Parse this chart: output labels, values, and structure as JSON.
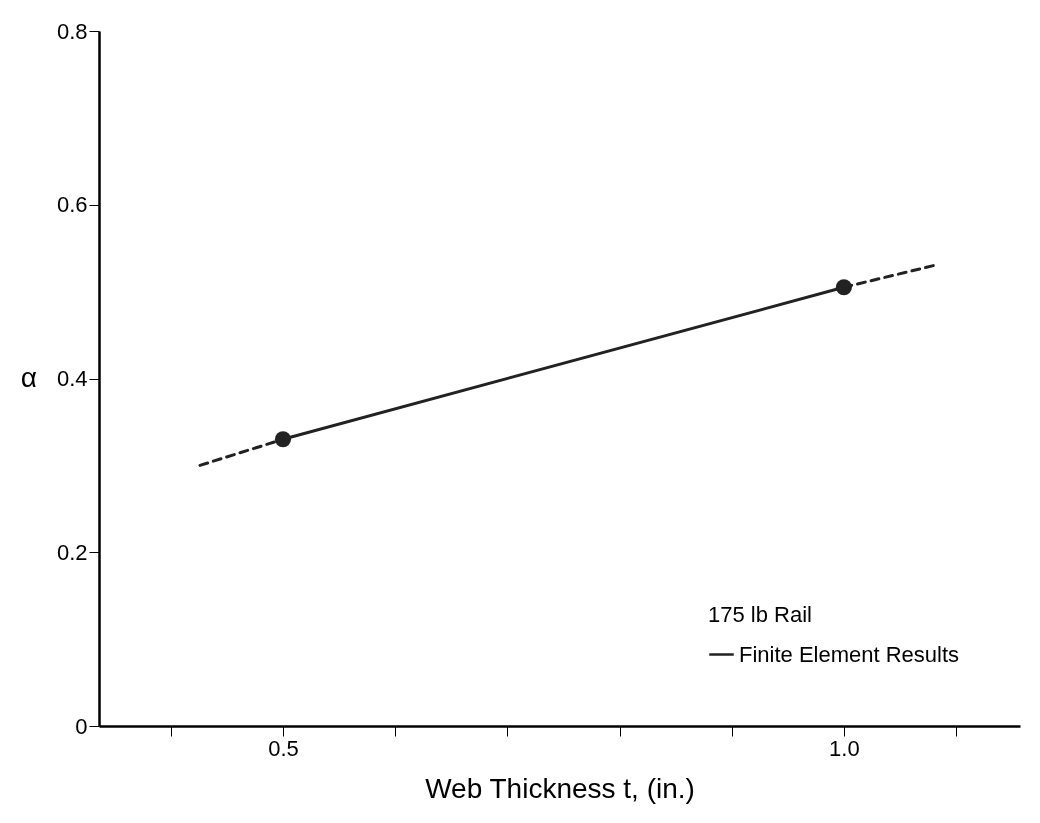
{
  "chart_data": {
    "type": "line",
    "xlabel": "Web Thickness  t, (in.)",
    "ylabel": "α",
    "legend_title": "175 lb Rail",
    "legend": "bottom right",
    "grid": false,
    "xlim": [
      0.336,
      1.157
    ],
    "xticks": [
      {
        "value": 0.4,
        "label": null
      },
      0.5,
      {
        "value": 0.6,
        "label": null
      },
      {
        "value": 0.7,
        "label": null
      },
      {
        "value": 0.8,
        "label": null
      },
      {
        "value": 0.9,
        "label": null
      },
      {
        "value": 1.0,
        "label": "1.0"
      },
      {
        "value": 1.1,
        "label": null
      }
    ],
    "ylim": [
      0,
      0.8
    ],
    "yticks": [
      0,
      0.2,
      0.4,
      0.6,
      0.8
    ],
    "series": [
      {
        "name": "Finite Element Results",
        "color": "#222222",
        "x": [
          0.5,
          1.0
        ],
        "values": [
          0.33,
          0.505
        ],
        "marker": "circle",
        "line_style": "solid"
      },
      {
        "color": "#222222",
        "x": [
          0.426,
          0.5
        ],
        "values": [
          0.3,
          0.33
        ],
        "marker": "none",
        "line_style": "dashed"
      },
      {
        "color": "#222222",
        "x": [
          1.0,
          1.08
        ],
        "values": [
          0.505,
          0.53
        ],
        "marker": "none",
        "line_style": "dashed"
      }
    ]
  }
}
